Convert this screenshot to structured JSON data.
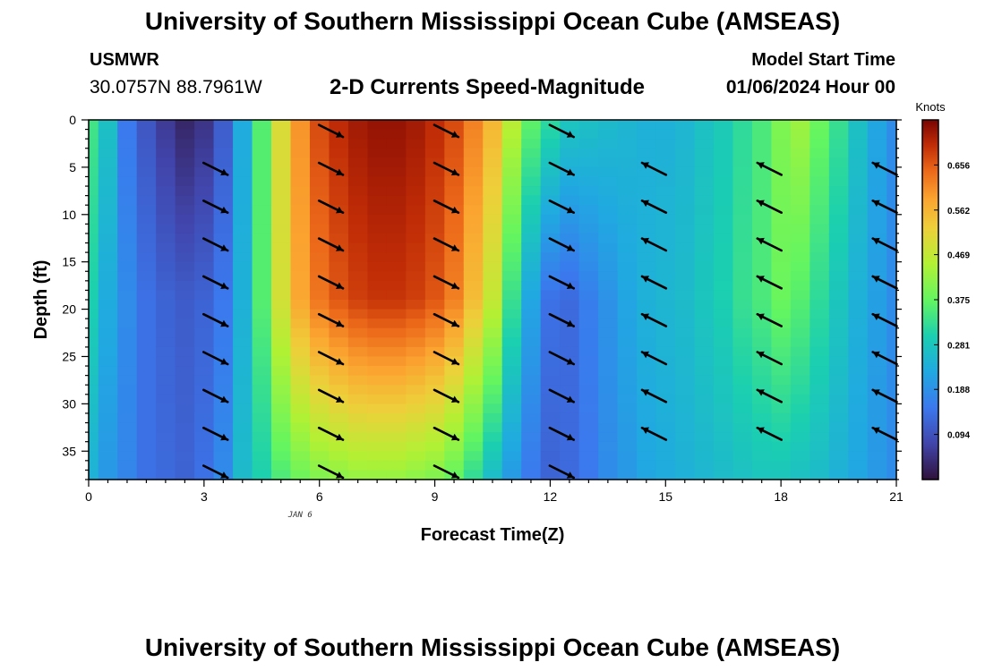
{
  "header": {
    "title": "University of Southern Mississippi Ocean Cube (AMSEAS)",
    "station": "USMWR",
    "coordinates": "30.0757N  88.7961W",
    "subtitle": "2-D Currents Speed-Magnitude",
    "model_start_label": "Model Start Time",
    "model_start_value": "01/06/2024 Hour 00"
  },
  "footer": {
    "title": "University of Southern Mississippi Ocean Cube (AMSEAS)"
  },
  "chart_data": {
    "type": "heatmap",
    "title": "2-D Currents Speed-Magnitude",
    "xlabel": "Forecast Time(Z)",
    "ylabel": "Depth (ft)",
    "x_annotation": "JAN 6",
    "xlim": [
      0,
      21
    ],
    "ylim": [
      0,
      38
    ],
    "x_ticks": [
      0,
      3,
      6,
      9,
      12,
      15,
      18,
      21
    ],
    "y_ticks": [
      0,
      5,
      10,
      15,
      20,
      25,
      30,
      35
    ],
    "colorbar": {
      "unit": "Knots",
      "range": [
        0,
        0.75
      ],
      "ticks": [
        "0.094",
        "0.188",
        "0.281",
        "0.375",
        "0.469",
        "0.562",
        "0.656"
      ]
    },
    "time_hours": [
      0,
      0.5,
      1,
      1.5,
      2,
      2.5,
      3,
      3.5,
      4,
      4.5,
      5,
      5.5,
      6,
      6.5,
      7,
      7.5,
      8,
      8.5,
      9,
      9.5,
      10,
      10.5,
      11,
      11.5,
      12,
      12.5,
      13,
      13.5,
      14,
      14.5,
      15,
      15.5,
      16,
      16.5,
      17,
      17.5,
      18,
      18.5,
      19,
      19.5,
      20,
      20.5,
      21
    ],
    "depths_ft": [
      0,
      19,
      38
    ],
    "speed_knots_by_depth": {
      "surface_0ft": [
        0.34,
        0.27,
        0.15,
        0.1,
        0.06,
        0.03,
        0.05,
        0.11,
        0.23,
        0.36,
        0.5,
        0.6,
        0.67,
        0.7,
        0.72,
        0.73,
        0.73,
        0.72,
        0.7,
        0.67,
        0.62,
        0.56,
        0.46,
        0.37,
        0.32,
        0.28,
        0.27,
        0.26,
        0.25,
        0.24,
        0.24,
        0.25,
        0.27,
        0.29,
        0.32,
        0.35,
        0.4,
        0.43,
        0.38,
        0.33,
        0.27,
        0.22,
        0.18
      ],
      "mid_19ft": [
        0.3,
        0.23,
        0.18,
        0.14,
        0.12,
        0.11,
        0.12,
        0.15,
        0.24,
        0.36,
        0.49,
        0.58,
        0.63,
        0.66,
        0.68,
        0.69,
        0.69,
        0.68,
        0.66,
        0.62,
        0.55,
        0.47,
        0.33,
        0.22,
        0.14,
        0.13,
        0.16,
        0.19,
        0.22,
        0.24,
        0.25,
        0.26,
        0.28,
        0.3,
        0.33,
        0.35,
        0.38,
        0.36,
        0.32,
        0.28,
        0.24,
        0.21,
        0.18
      ],
      "bottom_38ft": [
        0.24,
        0.2,
        0.17,
        0.14,
        0.13,
        0.12,
        0.14,
        0.18,
        0.26,
        0.3,
        0.35,
        0.38,
        0.4,
        0.41,
        0.42,
        0.42,
        0.42,
        0.41,
        0.4,
        0.37,
        0.32,
        0.26,
        0.2,
        0.15,
        0.12,
        0.13,
        0.15,
        0.18,
        0.2,
        0.22,
        0.23,
        0.24,
        0.25,
        0.26,
        0.27,
        0.28,
        0.28,
        0.27,
        0.26,
        0.24,
        0.22,
        0.2,
        0.18
      ]
    },
    "vectors": {
      "times": [
        3.3,
        6.3,
        9.3,
        12.3,
        14.7,
        17.7,
        20.7
      ],
      "direction": [
        "southeast",
        "southeast",
        "southeast",
        "southeast",
        "northwest",
        "northwest",
        "northwest"
      ],
      "depths_ft": [
        [
          4.6,
          8.6,
          12.6,
          16.6,
          20.6,
          24.6,
          28.6,
          32.6,
          36.6
        ],
        [
          0.6,
          4.6,
          8.6,
          12.6,
          16.6,
          20.6,
          24.6,
          28.6,
          32.6,
          36.6
        ],
        [
          0.6,
          4.6,
          8.6,
          12.6,
          16.6,
          20.6,
          24.6,
          28.6,
          32.6,
          36.6
        ],
        [
          0.6,
          4.6,
          8.6,
          12.6,
          16.6,
          20.6,
          24.6,
          28.6,
          32.6,
          36.6
        ],
        [
          4.6,
          8.6,
          12.6,
          16.6,
          20.6,
          24.6,
          28.6,
          32.6
        ],
        [
          4.6,
          8.6,
          12.6,
          16.6,
          20.6,
          24.6,
          28.6,
          32.6
        ],
        [
          4.6,
          8.6,
          12.6,
          16.6,
          20.6,
          24.6,
          28.6,
          32.6
        ]
      ]
    }
  }
}
